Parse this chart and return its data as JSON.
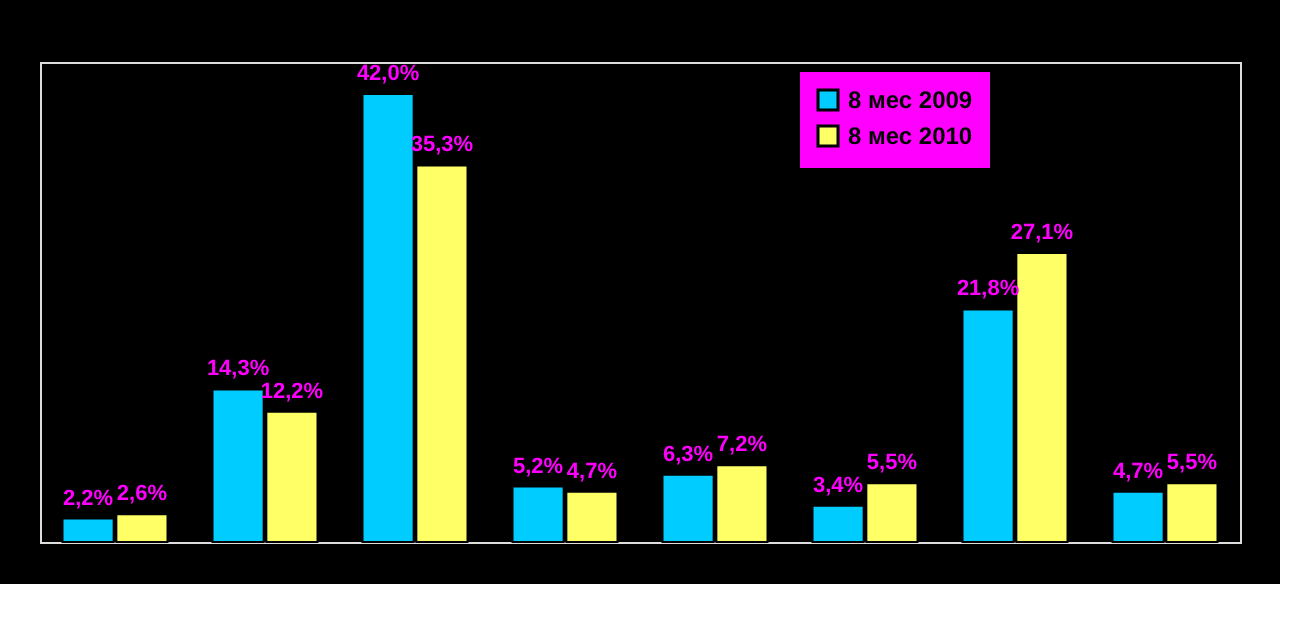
{
  "chart_data": {
    "type": "bar",
    "categories": [
      null,
      null,
      null,
      null,
      null,
      null,
      null,
      null
    ],
    "series": [
      {
        "name": "8 мес 2009",
        "color": "#00ccff",
        "values": [
          2.2,
          14.3,
          42.0,
          5.2,
          6.3,
          3.4,
          21.8,
          4.7
        ],
        "value_labels": [
          "2,2%",
          "14,3%",
          "42,0%",
          "5,2%",
          "6,3%",
          "3,4%",
          "21,8%",
          "4,7%"
        ]
      },
      {
        "name": "8 мес 2010",
        "color": "#ffff66",
        "values": [
          2.6,
          12.2,
          35.3,
          4.7,
          7.2,
          5.5,
          27.1,
          5.5
        ],
        "value_labels": [
          "2,6%",
          "12,2%",
          "35,3%",
          "4,7%",
          "7,2%",
          "5,5%",
          "27,1%",
          "5,5%"
        ]
      }
    ],
    "legend": "top right",
    "tick_labels": false
  }
}
